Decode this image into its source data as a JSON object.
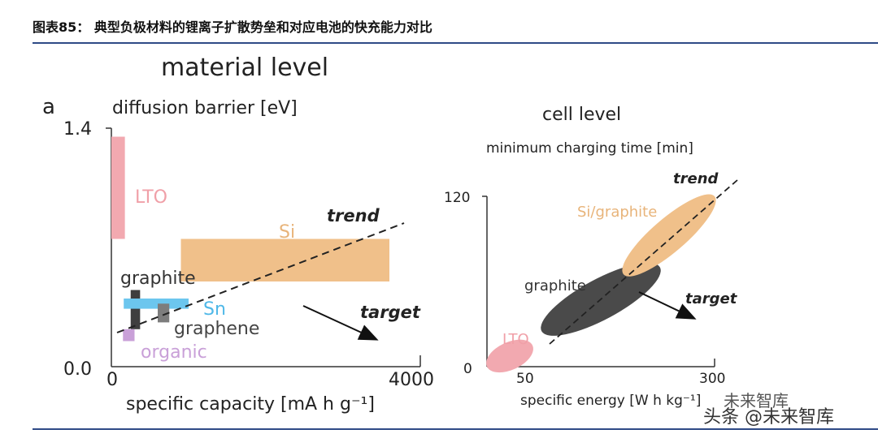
{
  "header": {
    "title": "图表85：  典型负极材料的锂离子扩散势垒和对应电池的快充能力对比"
  },
  "watermark": {
    "line1": "未来智库",
    "line2": "头条 @未来智库"
  },
  "chart_data": [
    {
      "type": "bar",
      "panel_letter": "a",
      "title": "material level",
      "ylabel": "diffusion barrier [eV]",
      "xlabel": "specific capacity [mA h g⁻¹]",
      "xlim": [
        0,
        4000
      ],
      "ylim": [
        0.0,
        1.4
      ],
      "xticks": [
        "0",
        "4000"
      ],
      "yticks": [
        "0.0",
        "1.4"
      ],
      "materials": [
        {
          "name": "LTO",
          "capacity_range": [
            0,
            175
          ],
          "barrier_range": [
            0.75,
            1.35
          ],
          "color": "#f2a9b0"
        },
        {
          "name": "Si",
          "capacity_range": [
            900,
            3600
          ],
          "barrier_range": [
            0.5,
            0.75
          ],
          "color": "#f0c08a"
        },
        {
          "name": "graphite",
          "capacity_range": [
            250,
            372
          ],
          "barrier_range": [
            0.22,
            0.45
          ],
          "color": "#3f3f3f"
        },
        {
          "name": "Sn",
          "capacity_range": [
            160,
            1000
          ],
          "barrier_range": [
            0.34,
            0.4
          ],
          "color": "#6cc6ee"
        },
        {
          "name": "graphene",
          "capacity_range": [
            600,
            750
          ],
          "barrier_range": [
            0.26,
            0.37
          ],
          "color": "#7d7d7d"
        },
        {
          "name": "organic",
          "capacity_range": [
            150,
            300
          ],
          "barrier_range": [
            0.15,
            0.22
          ],
          "color": "#c9a0d8"
        }
      ],
      "annotations": {
        "trend": "trend",
        "target": "target"
      }
    },
    {
      "type": "scatter",
      "title": "cell level",
      "ylabel": "minimum charging time [min]",
      "xlabel": "specific energy [W h kg⁻¹]",
      "xlim": [
        50,
        300
      ],
      "ylim": [
        0,
        120
      ],
      "xticks": [
        "50",
        "300"
      ],
      "yticks": [
        "0",
        "120"
      ],
      "regions": [
        {
          "name": "LTO",
          "energy_range": [
            50,
            100
          ],
          "time_range": [
            0,
            15
          ],
          "color": "#f2a9b0"
        },
        {
          "name": "graphite",
          "energy_range": [
            110,
            240
          ],
          "time_range": [
            25,
            70
          ],
          "color": "#4a4a4a"
        },
        {
          "name": "Si/graphite",
          "energy_range": [
            200,
            300
          ],
          "time_range": [
            65,
            120
          ],
          "color": "#f0c08a"
        }
      ],
      "annotations": {
        "trend": "trend",
        "target": "target"
      }
    }
  ]
}
